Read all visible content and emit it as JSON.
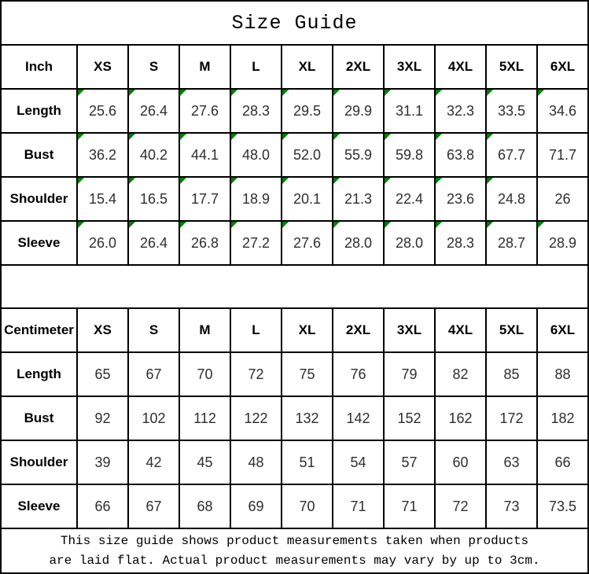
{
  "title": "Size Guide",
  "colors": {
    "triangle_green": "#008000",
    "grid_line": "#000000",
    "value_text": "#2e2e2e"
  },
  "sizes": [
    "XS",
    "S",
    "M",
    "L",
    "XL",
    "2XL",
    "3XL",
    "4XL",
    "5XL",
    "6XL"
  ],
  "tables": [
    {
      "unit_label": "Inch",
      "rows": [
        {
          "label": "Length",
          "values": [
            "25.6",
            "26.4",
            "27.6",
            "28.3",
            "29.5",
            "29.9",
            "31.1",
            "32.3",
            "33.5",
            "34.6"
          ],
          "flags": [
            1,
            1,
            1,
            1,
            1,
            1,
            1,
            1,
            1,
            1
          ]
        },
        {
          "label": "Bust",
          "values": [
            "36.2",
            "40.2",
            "44.1",
            "48.0",
            "52.0",
            "55.9",
            "59.8",
            "63.8",
            "67.7",
            "71.7"
          ],
          "flags": [
            1,
            1,
            1,
            1,
            1,
            1,
            1,
            1,
            1,
            0
          ]
        },
        {
          "label": "Shoulder",
          "values": [
            "15.4",
            "16.5",
            "17.7",
            "18.9",
            "20.1",
            "21.3",
            "22.4",
            "23.6",
            "24.8",
            "26"
          ],
          "flags": [
            1,
            1,
            1,
            1,
            1,
            1,
            1,
            1,
            1,
            0
          ]
        },
        {
          "label": "Sleeve",
          "values": [
            "26.0",
            "26.4",
            "26.8",
            "27.2",
            "27.6",
            "28.0",
            "28.0",
            "28.3",
            "28.7",
            "28.9"
          ],
          "flags": [
            1,
            1,
            1,
            1,
            1,
            1,
            1,
            1,
            1,
            1
          ]
        }
      ]
    },
    {
      "unit_label": "Centimeter",
      "rows": [
        {
          "label": "Length",
          "values": [
            "65",
            "67",
            "70",
            "72",
            "75",
            "76",
            "79",
            "82",
            "85",
            "88"
          ],
          "flags": [
            0,
            0,
            0,
            0,
            0,
            0,
            0,
            0,
            0,
            0
          ]
        },
        {
          "label": "Bust",
          "values": [
            "92",
            "102",
            "112",
            "122",
            "132",
            "142",
            "152",
            "162",
            "172",
            "182"
          ],
          "flags": [
            0,
            0,
            0,
            0,
            0,
            0,
            0,
            0,
            0,
            0
          ]
        },
        {
          "label": "Shoulder",
          "values": [
            "39",
            "42",
            "45",
            "48",
            "51",
            "54",
            "57",
            "60",
            "63",
            "66"
          ],
          "flags": [
            0,
            0,
            0,
            0,
            0,
            0,
            0,
            0,
            0,
            0
          ]
        },
        {
          "label": "Sleeve",
          "values": [
            "66",
            "67",
            "68",
            "69",
            "70",
            "71",
            "71",
            "72",
            "73",
            "73.5"
          ],
          "flags": [
            0,
            0,
            0,
            0,
            0,
            0,
            0,
            0,
            0,
            0
          ]
        }
      ]
    }
  ],
  "footer": {
    "line1": "This size guide shows product measurements taken when products",
    "line2": "are laid flat. Actual product measurements may vary by up to 3cm."
  }
}
